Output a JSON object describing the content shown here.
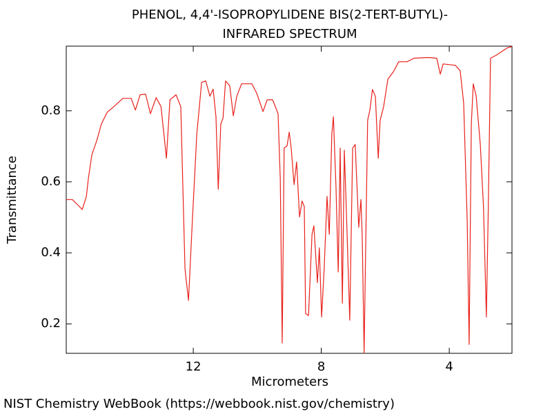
{
  "chart_data": {
    "type": "line",
    "title": [
      "PHENOL, 4,4'-ISOPROPYLIDENE BIS(2-TERT-BUTYL)-",
      "INFRARED SPECTRUM"
    ],
    "x_label": "Micrometers",
    "y_label": "Transmittance",
    "source": "NIST Chemistry WebBook (https://webbook.nist.gov/chemistry)",
    "xlim": [
      15.97,
      2.04
    ],
    "ylim": [
      0.117,
      0.982
    ],
    "xticks": [
      12,
      8,
      4
    ],
    "yticks": [
      0.2,
      0.4,
      0.6,
      0.8
    ],
    "grid": false,
    "x": [
      15.97,
      15.78,
      15.62,
      15.47,
      15.34,
      15.28,
      15.17,
      15.02,
      14.87,
      14.69,
      14.48,
      14.2,
      13.94,
      13.81,
      13.66,
      13.49,
      13.34,
      13.16,
      13.01,
      12.91,
      12.84,
      12.73,
      12.54,
      12.39,
      12.26,
      12.15,
      12.04,
      11.89,
      11.74,
      11.61,
      11.48,
      11.38,
      11.29,
      11.22,
      11.14,
      11.07,
      10.99,
      10.86,
      10.75,
      10.64,
      10.49,
      10.17,
      10.02,
      9.82,
      9.69,
      9.52,
      9.35,
      9.28,
      9.22,
      9.16,
      9.07,
      9.0,
      8.94,
      8.85,
      8.77,
      8.68,
      8.6,
      8.53,
      8.49,
      8.4,
      8.29,
      8.23,
      8.12,
      8.06,
      7.99,
      7.91,
      7.82,
      7.75,
      7.67,
      7.62,
      7.54,
      7.47,
      7.41,
      7.34,
      7.28,
      7.22,
      7.11,
      7.02,
      6.94,
      6.83,
      6.76,
      6.72,
      6.66,
      6.61,
      6.55,
      6.48,
      6.4,
      6.31,
      6.22,
      6.16,
      6.05,
      5.92,
      5.75,
      5.58,
      5.32,
      5.1,
      4.67,
      4.39,
      4.28,
      4.19,
      3.81,
      3.66,
      3.55,
      3.44,
      3.38,
      3.31,
      3.25,
      3.16,
      3.03,
      2.93,
      2.84,
      2.78,
      2.71,
      2.52,
      2.19,
      2.04
    ],
    "series": [
      {
        "color": "#e8201a",
        "values": [
          0.55,
          0.55,
          0.536,
          0.522,
          0.559,
          0.608,
          0.676,
          0.715,
          0.763,
          0.796,
          0.812,
          0.835,
          0.835,
          0.802,
          0.845,
          0.847,
          0.792,
          0.837,
          0.812,
          0.728,
          0.666,
          0.831,
          0.845,
          0.812,
          0.355,
          0.266,
          0.472,
          0.734,
          0.88,
          0.884,
          0.841,
          0.861,
          0.783,
          0.579,
          0.763,
          0.779,
          0.884,
          0.87,
          0.786,
          0.841,
          0.876,
          0.876,
          0.85,
          0.798,
          0.831,
          0.831,
          0.792,
          0.608,
          0.146,
          0.695,
          0.701,
          0.74,
          0.695,
          0.592,
          0.656,
          0.501,
          0.546,
          0.53,
          0.229,
          0.223,
          0.452,
          0.476,
          0.316,
          0.414,
          0.219,
          0.355,
          0.559,
          0.452,
          0.734,
          0.783,
          0.588,
          0.346,
          0.695,
          0.258,
          0.689,
          0.53,
          0.21,
          0.695,
          0.705,
          0.472,
          0.55,
          0.443,
          0.118,
          0.433,
          0.773,
          0.802,
          0.86,
          0.841,
          0.666,
          0.773,
          0.812,
          0.889,
          0.909,
          0.938,
          0.938,
          0.948,
          0.95,
          0.948,
          0.903,
          0.932,
          0.928,
          0.913,
          0.821,
          0.491,
          0.142,
          0.763,
          0.876,
          0.841,
          0.705,
          0.53,
          0.219,
          0.53,
          0.948,
          0.957,
          0.977,
          0.981
        ]
      }
    ]
  }
}
